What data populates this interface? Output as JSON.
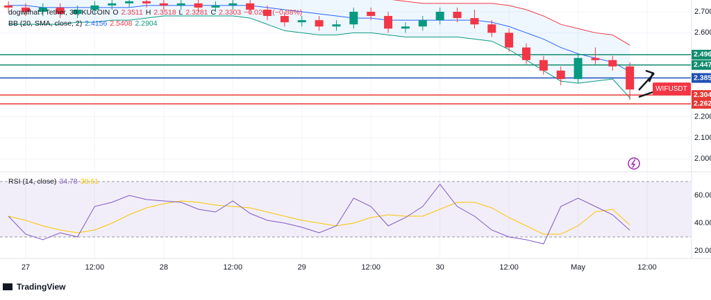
{
  "chart_data": {
    "type": "candlestick",
    "title": "dogwifhat / Tether, 30, KUCOIN",
    "ohlc_legend": {
      "o_label": "O",
      "o": 2.3511,
      "h_label": "H",
      "h": 2.3518,
      "l_label": "L",
      "l": 2.3281,
      "c_label": "C",
      "c": 2.3303,
      "change": "−0.0208 (−0.88%)"
    },
    "symbol_label": "WIFUSDT",
    "brand": "TradingView",
    "x": [
      -3,
      0,
      3,
      6,
      9,
      12,
      15,
      18,
      21,
      24,
      27,
      30,
      33,
      36,
      39,
      42,
      45,
      48,
      51,
      54,
      57,
      60,
      63,
      66,
      69,
      72,
      75,
      78,
      81,
      84,
      87,
      90,
      93,
      96,
      99,
      102,
      105
    ],
    "open": [
      2.73,
      2.72,
      2.7,
      2.72,
      2.69,
      2.71,
      2.73,
      2.74,
      2.75,
      2.74,
      2.73,
      2.74,
      2.72,
      2.73,
      2.74,
      2.71,
      2.68,
      2.65,
      2.66,
      2.63,
      2.64,
      2.7,
      2.68,
      2.62,
      2.63,
      2.66,
      2.7,
      2.67,
      2.64,
      2.6,
      2.53,
      2.47,
      2.42,
      2.38,
      2.48,
      2.47,
      2.44
    ],
    "high": [
      2.75,
      2.74,
      2.74,
      2.74,
      2.73,
      2.75,
      2.76,
      2.77,
      2.77,
      2.76,
      2.76,
      2.76,
      2.75,
      2.76,
      2.76,
      2.73,
      2.7,
      2.68,
      2.68,
      2.66,
      2.72,
      2.72,
      2.7,
      2.65,
      2.68,
      2.72,
      2.72,
      2.71,
      2.66,
      2.62,
      2.55,
      2.49,
      2.44,
      2.5,
      2.53,
      2.49,
      2.46
    ],
    "low": [
      2.7,
      2.68,
      2.68,
      2.67,
      2.67,
      2.69,
      2.71,
      2.72,
      2.72,
      2.71,
      2.71,
      2.7,
      2.7,
      2.71,
      2.69,
      2.66,
      2.63,
      2.63,
      2.61,
      2.61,
      2.62,
      2.66,
      2.6,
      2.6,
      2.61,
      2.64,
      2.65,
      2.62,
      2.58,
      2.51,
      2.45,
      2.4,
      2.35,
      2.36,
      2.45,
      2.42,
      2.28
    ],
    "close": [
      2.72,
      2.7,
      2.72,
      2.69,
      2.71,
      2.73,
      2.74,
      2.75,
      2.74,
      2.73,
      2.74,
      2.72,
      2.73,
      2.74,
      2.71,
      2.68,
      2.65,
      2.66,
      2.63,
      2.64,
      2.7,
      2.68,
      2.62,
      2.63,
      2.66,
      2.7,
      2.67,
      2.64,
      2.6,
      2.53,
      2.47,
      2.42,
      2.38,
      2.48,
      2.47,
      2.44,
      2.3303
    ],
    "up_color": "#089981",
    "down_color": "#f23645",
    "bollinger": {
      "name": "BB (20, SMA, close, 2)",
      "basis": [
        2.73,
        2.73,
        2.72,
        2.72,
        2.72,
        2.72,
        2.72,
        2.72,
        2.73,
        2.73,
        2.73,
        2.73,
        2.73,
        2.73,
        2.73,
        2.72,
        2.71,
        2.7,
        2.69,
        2.68,
        2.67,
        2.67,
        2.66,
        2.66,
        2.66,
        2.66,
        2.66,
        2.66,
        2.65,
        2.63,
        2.6,
        2.57,
        2.53,
        2.5,
        2.48,
        2.46,
        2.4156
      ],
      "upper": [
        2.82,
        2.82,
        2.81,
        2.81,
        2.8,
        2.8,
        2.8,
        2.8,
        2.79,
        2.79,
        2.78,
        2.78,
        2.78,
        2.78,
        2.79,
        2.8,
        2.81,
        2.81,
        2.8,
        2.79,
        2.77,
        2.76,
        2.76,
        2.75,
        2.74,
        2.74,
        2.74,
        2.74,
        2.74,
        2.73,
        2.71,
        2.68,
        2.64,
        2.62,
        2.6,
        2.59,
        2.5408
      ],
      "lower": [
        2.64,
        2.64,
        2.64,
        2.64,
        2.65,
        2.65,
        2.66,
        2.66,
        2.67,
        2.68,
        2.68,
        2.68,
        2.68,
        2.68,
        2.67,
        2.64,
        2.61,
        2.6,
        2.59,
        2.59,
        2.6,
        2.6,
        2.59,
        2.58,
        2.58,
        2.58,
        2.58,
        2.57,
        2.56,
        2.52,
        2.47,
        2.42,
        2.37,
        2.36,
        2.37,
        2.38,
        2.2904
      ],
      "basis_color": "#2962ff",
      "upper_color": "#f23645",
      "lower_color": "#089981"
    },
    "levels": [
      {
        "value": 2.496,
        "color": "#0f8a6c"
      },
      {
        "value": 2.447,
        "color": "#0f8a6c"
      },
      {
        "value": 2.385,
        "color": "#1e4fb5"
      },
      {
        "value": 2.304,
        "color": "#e53935"
      },
      {
        "value": 2.262,
        "color": "#e53935"
      }
    ],
    "xlim": [
      -4.46,
      115.6
    ],
    "xticks": [
      {
        "value": 0,
        "label": "27"
      },
      {
        "value": 12,
        "label": "12:00"
      },
      {
        "value": 24,
        "label": "28"
      },
      {
        "value": 36,
        "label": "12:00"
      },
      {
        "value": 48,
        "label": "29"
      },
      {
        "value": 60,
        "label": "12:00"
      },
      {
        "value": 72,
        "label": "30"
      },
      {
        "value": 84,
        "label": "12:00"
      },
      {
        "value": 96,
        "label": "May"
      },
      {
        "value": 108,
        "label": "12:00"
      }
    ],
    "ylim": [
      1.945,
      2.756
    ],
    "yticks": [
      {
        "value": 2.7,
        "label": "2.700"
      },
      {
        "value": 2.6,
        "label": "2.600"
      },
      {
        "value": 2.2,
        "label": "2.200"
      },
      {
        "value": 2.1,
        "label": "2.100"
      },
      {
        "value": 2.0,
        "label": "2.000"
      }
    ],
    "rsi": {
      "name": "RSI (14, close)",
      "values": [
        45,
        32,
        28,
        33,
        30,
        52,
        55,
        60,
        57,
        56,
        55,
        50,
        48,
        56,
        47,
        42,
        40,
        37,
        33,
        38,
        58,
        52,
        38,
        44,
        52,
        68,
        52,
        45,
        35,
        30,
        28,
        25,
        52,
        58,
        52,
        46,
        34.78
      ],
      "ma_values": [
        45,
        42,
        38,
        35,
        33,
        35,
        40,
        46,
        51,
        54,
        56,
        55,
        53,
        52,
        51,
        48,
        45,
        42,
        40,
        38,
        40,
        44,
        46,
        45,
        45,
        50,
        55,
        55,
        51,
        44,
        38,
        32,
        32,
        38,
        48,
        50,
        38.61
      ],
      "color": "#7e57c2",
      "ma_color": "#f7c600",
      "ylim": [
        15,
        76
      ],
      "yticks": [
        {
          "value": 60,
          "label": "60.00"
        },
        {
          "value": 40,
          "label": "40.00"
        },
        {
          "value": 20,
          "label": "20.00"
        }
      ],
      "band": [
        30,
        70
      ]
    }
  }
}
